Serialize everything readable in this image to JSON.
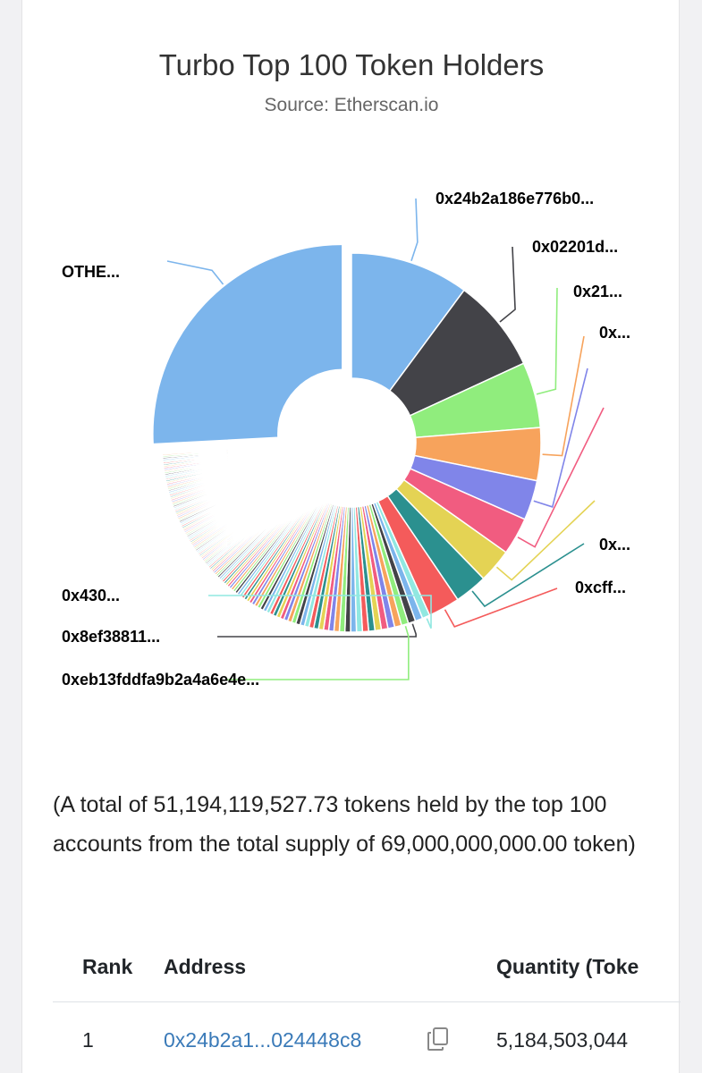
{
  "chart_data": {
    "type": "pie",
    "title": "Turbo Top 100 Token Holders",
    "subtitle": "Source: Etherscan.io",
    "donut": true,
    "labeled_slices": [
      {
        "label": "0x24b2a186e776b0...",
        "value": 10.13,
        "color": "#7cb5ec"
      },
      {
        "label": "0x02201d...",
        "value": 8.0,
        "color": "#434348"
      },
      {
        "label": "0x21...",
        "value": 5.6,
        "color": "#90ed7d"
      },
      {
        "label": "0x...",
        "value": 4.5,
        "color": "#f7a35c"
      },
      {
        "label": "",
        "value": 3.4,
        "color": "#8085e9"
      },
      {
        "label": "",
        "value": 3.2,
        "color": "#f15c80"
      },
      {
        "label": "",
        "value": 2.9,
        "color": "#e4d354"
      },
      {
        "label": "0x...",
        "value": 2.8,
        "color": "#2b908f"
      },
      {
        "label": "0xcff...",
        "value": 2.7,
        "color": "#f45b5b"
      }
    ],
    "small_slice_labels": [
      {
        "label": "0x430...",
        "index": 0
      },
      {
        "label": "0x8ef38811...",
        "index": 2
      },
      {
        "label": "0xeb13fddfa9b2a4a6e4e...",
        "index": 3
      }
    ],
    "others": {
      "label": "OTHE...",
      "value": 25.85,
      "color": "#7cb5ec"
    },
    "palette": [
      "#7cb5ec",
      "#434348",
      "#90ed7d",
      "#f7a35c",
      "#8085e9",
      "#f15c80",
      "#e4d354",
      "#2b908f",
      "#f45b5b",
      "#91e8e1"
    ]
  },
  "summary": "(A total of 51,194,119,527.73 tokens held by the top 100 accounts from the total supply of 69,000,000,000.00 token)",
  "table": {
    "headers": {
      "rank": "Rank",
      "address": "Address",
      "quantity": "Quantity (Toke"
    },
    "rows": [
      {
        "rank": "1",
        "address": "0x24b2a1...024448c8",
        "quantity": "5,184,503,044"
      }
    ]
  }
}
